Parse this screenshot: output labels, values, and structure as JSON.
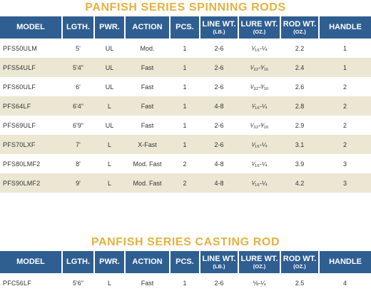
{
  "spinning": {
    "title": "PANFISH SERIES SPINNING RODS",
    "headers": [
      {
        "main": "MODEL",
        "sub": ""
      },
      {
        "main": "LGTH.",
        "sub": ""
      },
      {
        "main": "PWR.",
        "sub": ""
      },
      {
        "main": "ACTION",
        "sub": ""
      },
      {
        "main": "PCS.",
        "sub": ""
      },
      {
        "main": "LINE WT.",
        "sub": "(LB.)"
      },
      {
        "main": "LURE WT.",
        "sub": "(OZ.)"
      },
      {
        "main": "ROD WT.",
        "sub": "(OZ.)"
      },
      {
        "main": "HANDLE",
        "sub": ""
      }
    ],
    "rows": [
      [
        "PFS50ULM",
        "5'",
        "UL",
        "Mod.",
        "1",
        "2-6",
        "¹⁄₁₆-¼",
        "2.2",
        "1"
      ],
      [
        "PFS54ULF",
        "5'4\"",
        "UL",
        "Fast",
        "1",
        "2-6",
        "¹⁄₃₂-³⁄₁₆",
        "2.4",
        "1"
      ],
      [
        "PFS60ULF",
        "6'",
        "UL",
        "Fast",
        "1",
        "2-6",
        "¹⁄₃₂-³⁄₁₆",
        "2.6",
        "2"
      ],
      [
        "PFS64LF",
        "6'4\"",
        "L",
        "Fast",
        "1",
        "4-8",
        "¹⁄₁₆-¼",
        "2.8",
        "2"
      ],
      [
        "PFS69ULF",
        "6'9\"",
        "UL",
        "Fast",
        "1",
        "2-6",
        "¹⁄₃₂-³⁄₁₆",
        "2.9",
        "2"
      ],
      [
        "PFS70LXF",
        "7'",
        "L",
        "X-Fast",
        "1",
        "2-6",
        "¹⁄₁₆-¼",
        "3.1",
        "2"
      ],
      [
        "PFS80LMF2",
        "8'",
        "L",
        "Mod. Fast",
        "2",
        "4-8",
        "¹⁄₁₆-¼",
        "3.9",
        "3"
      ],
      [
        "PFS90LMF2",
        "9'",
        "L",
        "Mod. Fast",
        "2",
        "4-8",
        "¹⁄₁₆-¼",
        "4.2",
        "3"
      ]
    ]
  },
  "casting": {
    "title": "PANFISH SERIES CASTING ROD",
    "headers": [
      {
        "main": "MODEL",
        "sub": ""
      },
      {
        "main": "LGTH.",
        "sub": ""
      },
      {
        "main": "PWR.",
        "sub": ""
      },
      {
        "main": "ACTION",
        "sub": ""
      },
      {
        "main": "PCS.",
        "sub": ""
      },
      {
        "main": "LINE WT.",
        "sub": "(LB.)"
      },
      {
        "main": "LURE WT.",
        "sub": "(OZ.)"
      },
      {
        "main": "ROD WT.",
        "sub": "(OZ.)"
      },
      {
        "main": "HANDLE",
        "sub": ""
      }
    ],
    "rows": [
      [
        "PFC56LF",
        "5'6\"",
        "L",
        "Fast",
        "1",
        "2-6",
        "⅛-¼",
        "2.5",
        "4"
      ]
    ]
  }
}
